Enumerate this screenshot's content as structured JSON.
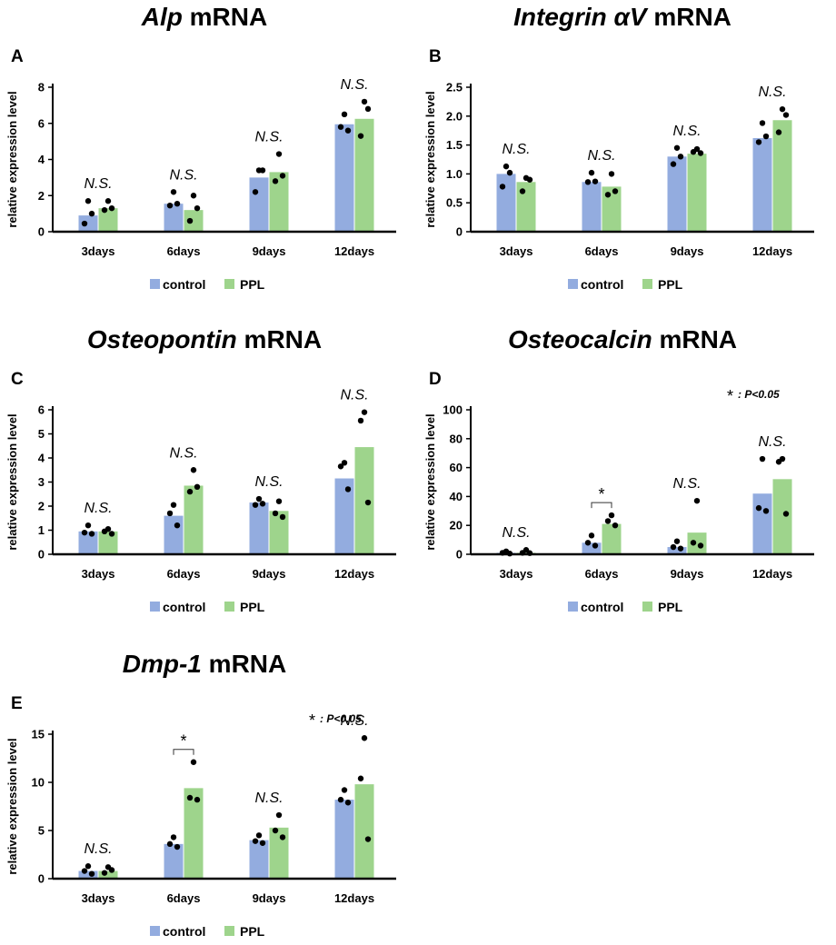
{
  "colors": {
    "control": "#93ACDF",
    "ppl": "#9ED48C",
    "axis": "#000000",
    "dot": "#000000"
  },
  "legend": {
    "control": "control",
    "ppl": "PPL"
  },
  "significance_note": {
    "star": "*",
    "text": ": P<0.05"
  },
  "chart_data": [
    {
      "id": "A",
      "type": "bar",
      "panel_letter": "A",
      "title_italic": "Alp",
      "title_rest": " mRNA",
      "ylabel": "relative expression level",
      "ylim": [
        0,
        8
      ],
      "yticks": [
        0,
        2,
        4,
        6,
        8
      ],
      "categories": [
        "3days",
        "6days",
        "9days",
        "12days"
      ],
      "series": [
        {
          "name": "control",
          "values": [
            0.9,
            1.55,
            3.0,
            5.95
          ],
          "points": [
            [
              1.7,
              0.45,
              1.0
            ],
            [
              2.2,
              1.45,
              1.55
            ],
            [
              3.4,
              2.2,
              3.4
            ],
            [
              6.5,
              5.8,
              5.6
            ]
          ]
        },
        {
          "name": "PPL",
          "values": [
            1.3,
            1.2,
            3.3,
            6.25
          ],
          "points": [
            [
              1.7,
              1.2,
              1.3
            ],
            [
              2.0,
              0.6,
              1.3
            ],
            [
              4.3,
              2.8,
              3.1
            ],
            [
              7.2,
              5.3,
              6.8
            ]
          ]
        }
      ],
      "labels": [
        "N.S.",
        "N.S.",
        "N.S.",
        "N.S."
      ],
      "brackets": []
    },
    {
      "id": "B",
      "type": "bar",
      "panel_letter": "B",
      "title_italic": "Integrin αV",
      "title_rest": " mRNA",
      "ylabel": "relative expression level",
      "ylim": [
        0,
        2.5
      ],
      "yticks": [
        0,
        0.5,
        1.0,
        1.5,
        2.0,
        2.5
      ],
      "ytick_labels": [
        "0",
        "0.5",
        "1.0",
        "1.5",
        "2.0",
        "2.5"
      ],
      "categories": [
        "3days",
        "6days",
        "9days",
        "12days"
      ],
      "series": [
        {
          "name": "control",
          "values": [
            1.0,
            0.86,
            1.3,
            1.62
          ],
          "points": [
            [
              1.13,
              0.78,
              1.02
            ],
            [
              1.02,
              0.86,
              0.87
            ],
            [
              1.45,
              1.17,
              1.3
            ],
            [
              1.88,
              1.55,
              1.65
            ]
          ]
        },
        {
          "name": "PPL",
          "values": [
            0.86,
            0.78,
            1.35,
            1.93
          ],
          "points": [
            [
              0.93,
              0.7,
              0.9
            ],
            [
              1.0,
              0.64,
              0.7
            ],
            [
              1.43,
              1.38,
              1.36
            ],
            [
              2.12,
              1.72,
              2.02
            ]
          ]
        }
      ],
      "labels": [
        "N.S.",
        "N.S.",
        "N.S.",
        "N.S."
      ],
      "brackets": []
    },
    {
      "id": "C",
      "type": "bar",
      "panel_letter": "C",
      "title_italic": "Osteopontin",
      "title_rest": " mRNA",
      "ylabel": "relative expression level",
      "ylim": [
        0,
        6
      ],
      "yticks": [
        0,
        1,
        2,
        3,
        4,
        5,
        6
      ],
      "categories": [
        "3days",
        "6days",
        "9days",
        "12days"
      ],
      "series": [
        {
          "name": "control",
          "values": [
            0.95,
            1.6,
            2.15,
            3.15
          ],
          "points": [
            [
              1.2,
              0.9,
              0.85
            ],
            [
              2.05,
              1.7,
              1.2
            ],
            [
              2.3,
              2.05,
              2.1
            ],
            [
              3.8,
              3.65,
              2.7
            ]
          ]
        },
        {
          "name": "PPL",
          "values": [
            0.95,
            2.85,
            1.8,
            4.45
          ],
          "points": [
            [
              1.05,
              0.95,
              0.85
            ],
            [
              3.5,
              2.6,
              2.8
            ],
            [
              2.2,
              1.7,
              1.55
            ],
            [
              5.9,
              5.55,
              2.15
            ]
          ]
        }
      ],
      "labels": [
        "N.S.",
        "N.S.",
        "N.S.",
        "N.S."
      ],
      "brackets": []
    },
    {
      "id": "D",
      "type": "bar",
      "panel_letter": "D",
      "title_italic": "Osteocalcin",
      "title_rest": " mRNA",
      "ylabel": "relative expression level",
      "ylim": [
        0,
        100
      ],
      "yticks": [
        0,
        20,
        40,
        60,
        80,
        100
      ],
      "categories": [
        "3days",
        "6days",
        "9days",
        "12days"
      ],
      "series": [
        {
          "name": "control",
          "values": [
            1.0,
            8.0,
            5.0,
            42.0
          ],
          "points": [
            [
              2.0,
              1.0,
              0.5
            ],
            [
              13.0,
              8.0,
              6.0
            ],
            [
              9.0,
              5.0,
              4.0
            ],
            [
              66.0,
              32.0,
              30.0
            ]
          ]
        },
        {
          "name": "PPL",
          "values": [
            1.0,
            21.0,
            15.0,
            52.0
          ],
          "points": [
            [
              3.0,
              1.0,
              0.8
            ],
            [
              27.0,
              23.0,
              20.0
            ],
            [
              37.0,
              8.0,
              6.0
            ],
            [
              66.0,
              64.0,
              28.0
            ]
          ]
        }
      ],
      "labels": [
        "N.S.",
        "*",
        "N.S.",
        "N.S."
      ],
      "brackets": [
        1
      ],
      "show_note": true
    },
    {
      "id": "E",
      "type": "bar",
      "panel_letter": "E",
      "title_italic": "Dmp-1",
      "title_rest": " mRNA",
      "ylabel": "relative expression level",
      "ylim": [
        0,
        15
      ],
      "yticks": [
        0,
        5,
        10,
        15
      ],
      "categories": [
        "3days",
        "6days",
        "9days",
        "12days"
      ],
      "series": [
        {
          "name": "control",
          "values": [
            0.8,
            3.6,
            4.0,
            8.2
          ],
          "points": [
            [
              1.3,
              0.8,
              0.5
            ],
            [
              4.3,
              3.6,
              3.3
            ],
            [
              4.5,
              3.9,
              3.7
            ],
            [
              9.2,
              8.2,
              7.9
            ]
          ]
        },
        {
          "name": "PPL",
          "values": [
            0.8,
            9.4,
            5.3,
            9.8
          ],
          "points": [
            [
              1.2,
              0.6,
              0.9
            ],
            [
              12.1,
              8.4,
              8.2
            ],
            [
              6.6,
              5.0,
              4.3
            ],
            [
              14.6,
              10.4,
              4.1
            ]
          ]
        }
      ],
      "labels": [
        "N.S.",
        "*",
        "N.S.",
        "N.S."
      ],
      "brackets": [
        1
      ],
      "show_note": true
    }
  ]
}
